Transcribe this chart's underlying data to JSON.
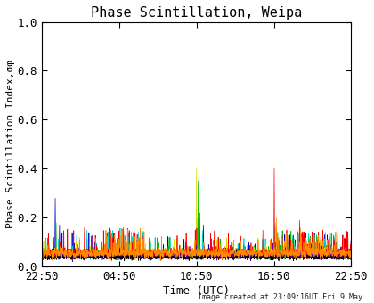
{
  "title": "Phase Scintillation, Weipa",
  "xlabel": "Time (UTC)",
  "ylabel": "Phase Scintillation Index,σφ",
  "xlim": [
    0,
    1440
  ],
  "ylim": [
    0.0,
    1.0
  ],
  "yticks": [
    0.0,
    0.2,
    0.4,
    0.6,
    0.8,
    1.0
  ],
  "xtick_positions": [
    0,
    360,
    720,
    1080,
    1440
  ],
  "xtick_labels": [
    "22:50",
    "04:50",
    "10:50",
    "16:50",
    "22:50"
  ],
  "background_color": "#ffffff",
  "plot_bg_color": "#ffffff",
  "footer_text": "Image created at 23:09:16UT Fri 9 May",
  "title_fontsize": 11,
  "axis_fontsize": 9,
  "tick_fontsize": 9,
  "footer_fontsize": 6,
  "line_width": 0.5,
  "base_level": 0.055,
  "noise_std": 0.018,
  "num_points": 1440,
  "num_series": 8,
  "colors": [
    "#0000cc",
    "#00cccc",
    "#00bb00",
    "#dddd00",
    "#ff0000",
    "#660099",
    "#000000",
    "#ff8800"
  ]
}
